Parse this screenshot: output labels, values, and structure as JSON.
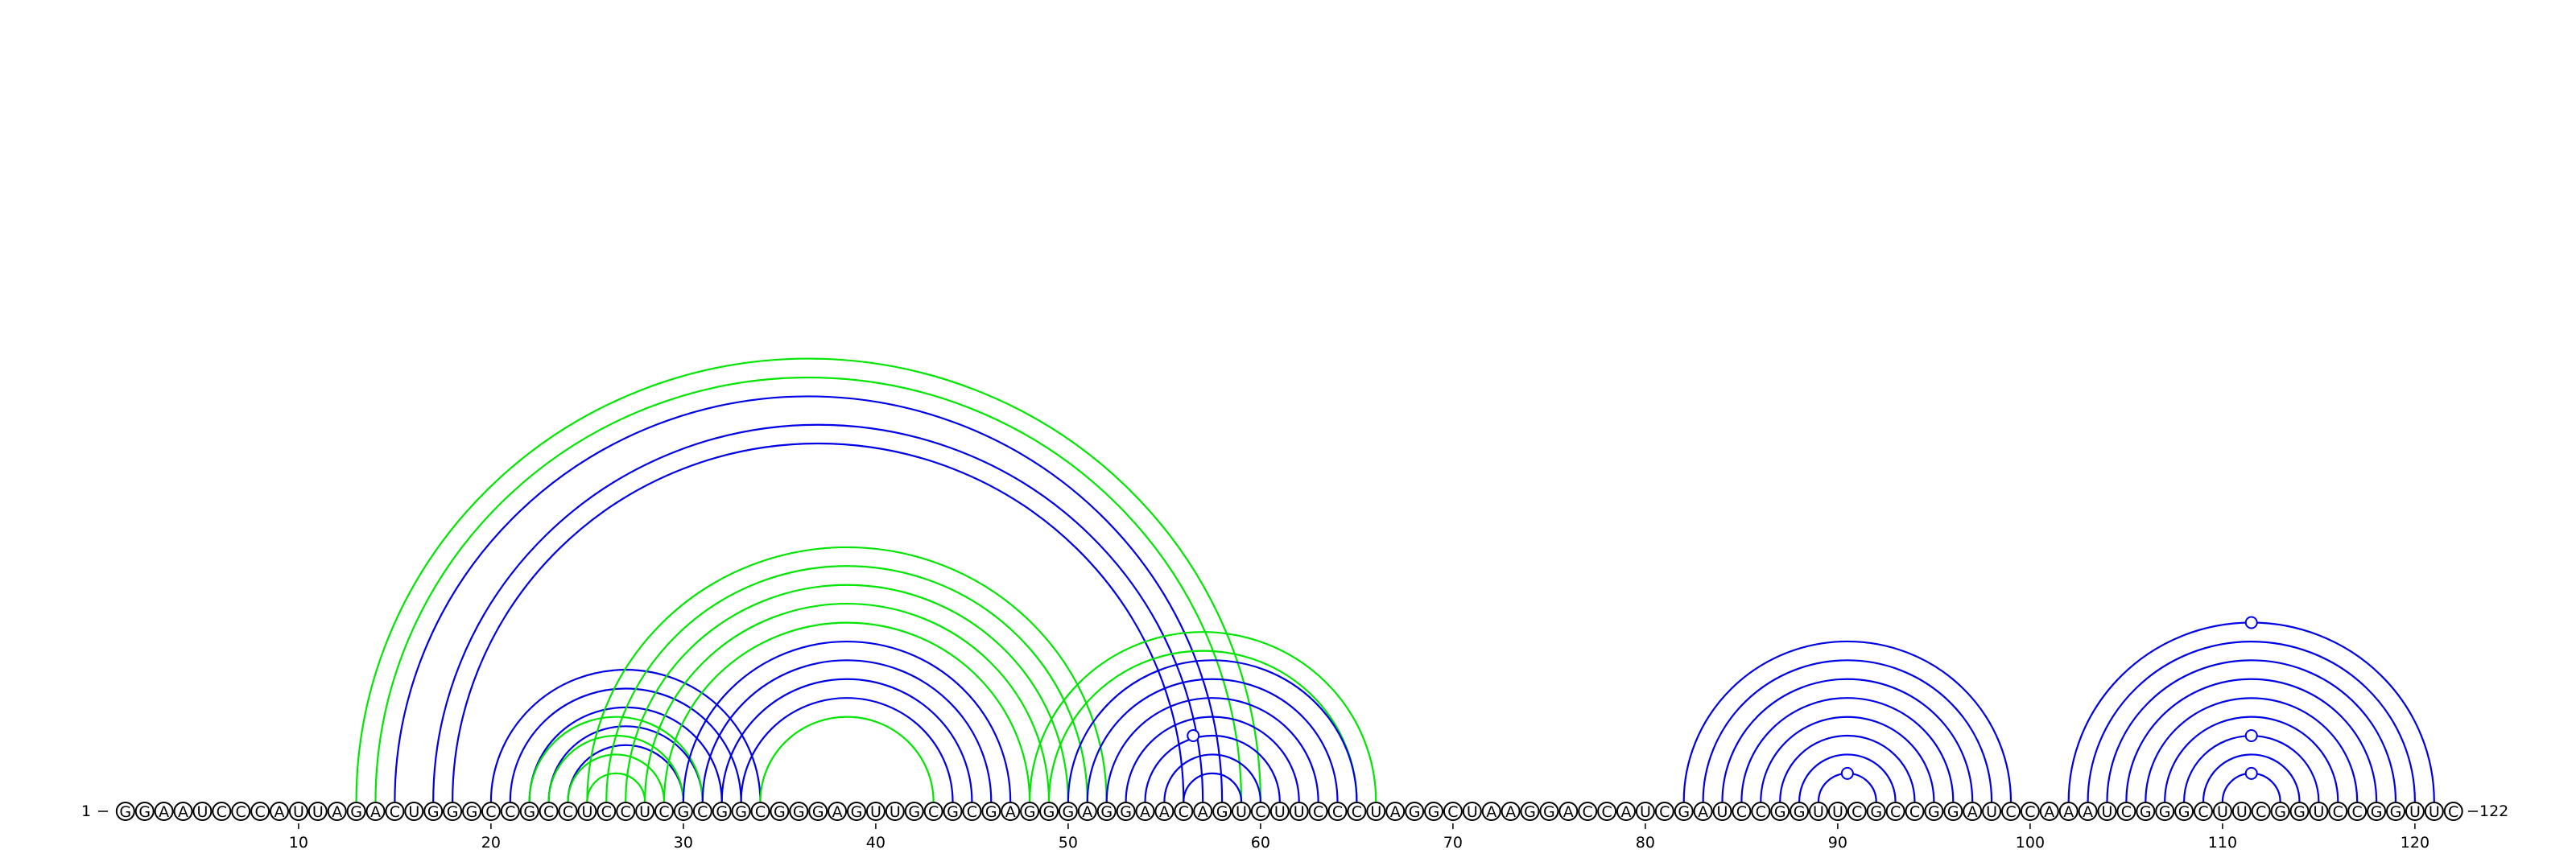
{
  "sequence": "GGAAUCCCAUUAGACUGGGCCGCCUCCUCGCGGCGGGAGUUGCGCGAGGGAGGAACAGUCUUCCCUAGGCUAAGGACCAUCGAUCCGGUUCGCCGGAUCCAAAUCGGGCUUCGGUCCGGUUC",
  "start_label": "1",
  "end_label": "122",
  "tick_labels": [
    "10",
    "20",
    "30",
    "40",
    "50",
    "60",
    "70",
    "80",
    "90",
    "100",
    "110",
    "120"
  ],
  "tick_positions": [
    10,
    20,
    30,
    40,
    50,
    60,
    70,
    80,
    90,
    100,
    110,
    120
  ],
  "colors": {
    "blue": "#0000e6",
    "green": "#00e600"
  },
  "helices": [
    {
      "color": "green",
      "pairs": [
        [
          13,
          60
        ],
        [
          14,
          59
        ]
      ]
    },
    {
      "color": "blue",
      "pairs": [
        [
          15,
          58
        ],
        [
          17,
          57
        ],
        [
          18,
          56
        ]
      ]
    },
    {
      "color": "blue",
      "pairs": [
        [
          20,
          34
        ],
        [
          21,
          33
        ],
        [
          22,
          32
        ],
        [
          23,
          31
        ],
        [
          24,
          30
        ]
      ]
    },
    {
      "color": "green",
      "pairs": [
        [
          22,
          31
        ],
        [
          23,
          30
        ],
        [
          24,
          29
        ],
        [
          25,
          28
        ]
      ]
    },
    {
      "color": "green",
      "pairs": [
        [
          25,
          52
        ],
        [
          26,
          51
        ],
        [
          27,
          50
        ],
        [
          28,
          49
        ],
        [
          29,
          48
        ]
      ]
    },
    {
      "color": "blue",
      "pairs": [
        [
          30,
          47
        ],
        [
          31,
          46
        ],
        [
          32,
          45
        ],
        [
          33,
          44
        ]
      ]
    },
    {
      "color": "green",
      "pairs": [
        [
          34,
          43
        ]
      ]
    },
    {
      "color": "green",
      "pairs": [
        [
          48,
          66
        ],
        [
          49,
          65
        ]
      ]
    },
    {
      "color": "blue",
      "pairs": [
        [
          50,
          65
        ],
        [
          51,
          64
        ],
        [
          52,
          63
        ],
        [
          53,
          62
        ],
        [
          54,
          61
        ],
        [
          55,
          60
        ],
        [
          56,
          59
        ]
      ]
    },
    {
      "color": "blue",
      "pairs": [
        [
          82,
          99
        ],
        [
          83,
          98
        ],
        [
          84,
          97
        ],
        [
          85,
          96
        ],
        [
          86,
          95
        ],
        [
          87,
          94
        ],
        [
          88,
          93
        ],
        [
          89,
          92
        ]
      ]
    },
    {
      "color": "blue",
      "pairs": [
        [
          102,
          121
        ],
        [
          103,
          120
        ],
        [
          104,
          119
        ],
        [
          105,
          118
        ],
        [
          106,
          117
        ],
        [
          107,
          116
        ],
        [
          108,
          115
        ],
        [
          109,
          114
        ],
        [
          110,
          113
        ]
      ]
    }
  ],
  "markers": [
    {
      "i": 53,
      "j": 60
    },
    {
      "i": 89,
      "j": 92
    },
    {
      "i": 108,
      "j": 115
    },
    {
      "i": 110,
      "j": 113
    },
    {
      "i": 102,
      "j": 121
    }
  ]
}
